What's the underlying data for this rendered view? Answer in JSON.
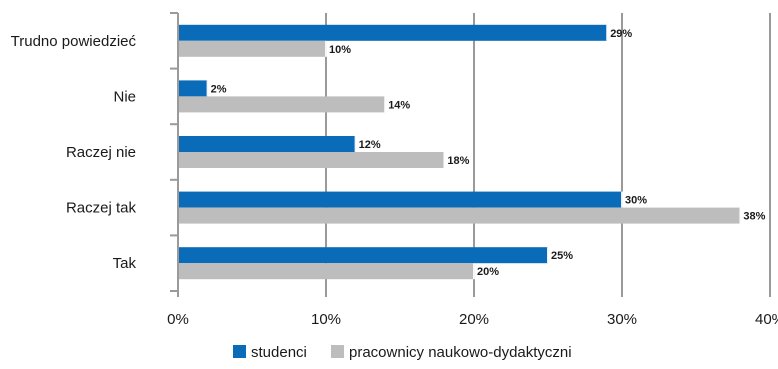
{
  "chart_data": {
    "type": "bar",
    "orientation": "horizontal",
    "categories": [
      "Trudno powiedzieć",
      "Nie",
      "Raczej nie",
      "Raczej tak",
      "Tak"
    ],
    "series": [
      {
        "name": "studenci",
        "values": [
          29,
          2,
          12,
          30,
          25
        ],
        "labels": [
          "29%",
          "2%",
          "12%",
          "30%",
          "25%"
        ],
        "color": "#0a6cb8"
      },
      {
        "name": "pracownicy naukowo-dydaktyczni",
        "values": [
          10,
          14,
          18,
          38,
          20
        ],
        "labels": [
          "10%",
          "14%",
          "18%",
          "38%",
          "20%"
        ],
        "color": "#bdbdbd"
      }
    ],
    "xlim": [
      0,
      40
    ],
    "x_ticks": [
      0,
      10,
      20,
      30,
      40
    ],
    "x_tick_labels": [
      "0%",
      "10%",
      "20%",
      "30%",
      "40%"
    ],
    "grid": "vertical",
    "legend_placement": "bottom"
  }
}
